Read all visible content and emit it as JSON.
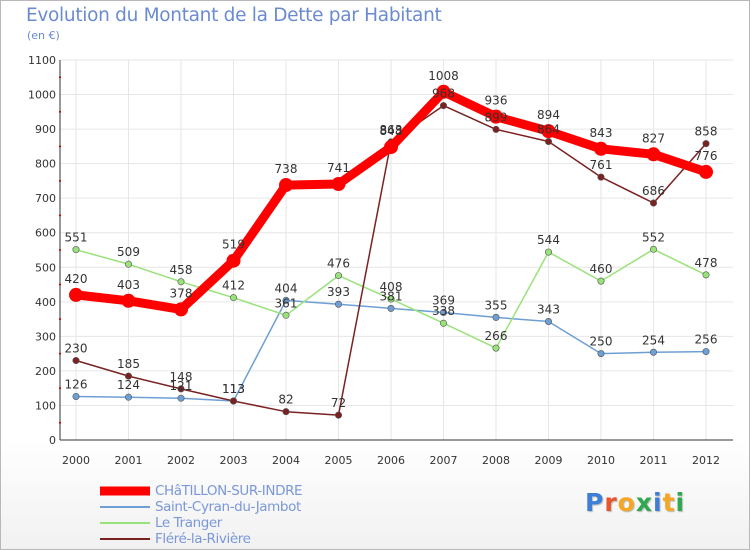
{
  "title": "Evolution du Montant de la Dette par Habitant",
  "unit": "(en €)",
  "logo": {
    "text": "Proxiti",
    "letter_colors": [
      "#3d7fd6",
      "#e8542b",
      "#f5a623",
      "#2fa84f",
      "#3d7fd6",
      "#f5a623",
      "#2fa84f"
    ]
  },
  "chart_data": {
    "type": "line",
    "x": [
      "2000",
      "2001",
      "2002",
      "2003",
      "2004",
      "2005",
      "2006",
      "2007",
      "2008",
      "2009",
      "2010",
      "2011",
      "2012"
    ],
    "ylim": [
      0,
      1100
    ],
    "yticks": [
      0,
      100,
      200,
      300,
      400,
      500,
      600,
      700,
      800,
      900,
      1000,
      1100
    ],
    "grid": true,
    "legend_position": "bottom-left",
    "series": [
      {
        "name": "CHâTILLON-SUR-INDRE",
        "color": "#ff0000",
        "values": [
          420,
          403,
          378,
          519,
          738,
          741,
          848,
          1008,
          936,
          894,
          843,
          827,
          776
        ]
      },
      {
        "name": "Saint-Cyran-du-Jambot",
        "color": "#6d9fd4",
        "values": [
          126,
          124,
          121,
          113,
          404,
          393,
          381,
          369,
          355,
          343,
          250,
          254,
          256
        ]
      },
      {
        "name": "Le Tranger",
        "color": "#99e27a",
        "values": [
          551,
          509,
          458,
          412,
          361,
          476,
          408,
          338,
          266,
          544,
          460,
          552,
          478
        ]
      },
      {
        "name": "Fléré-la-Rivière",
        "color": "#7a2222",
        "values": [
          230,
          185,
          148,
          113,
          82,
          72,
          863,
          968,
          899,
          864,
          761,
          686,
          858
        ]
      }
    ]
  }
}
